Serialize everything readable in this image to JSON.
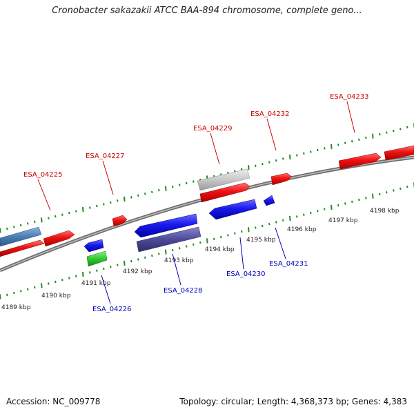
{
  "title": "Cronobacter sakazakii ATCC BAA-894 chromosome, complete geno...",
  "footer": {
    "accession": "Accession: NC_009778",
    "summary": "Topology: circular; Length: 4,368,373 bp; Genes: 4,383"
  },
  "colors": {
    "forward_gene": "#ee1111",
    "reverse_gene": "#1a1aee",
    "forward_label": "#cc0000",
    "reverse_label": "#0000bb",
    "tick": "#228b22",
    "backbone": "#808080"
  },
  "scale_ticks": [
    "4189 kbp",
    "4190 kbp",
    "4191 kbp",
    "4192 kbp",
    "4193 kbp",
    "4194 kbp",
    "4195 kbp",
    "4196 kbp",
    "4197 kbp",
    "4198 kbp"
  ],
  "forward_gene_labels": [
    "ESA_04225",
    "ESA_04227",
    "ESA_04229",
    "ESA_04232",
    "ESA_04233"
  ],
  "reverse_gene_labels": [
    "ESA_04226",
    "ESA_04228",
    "ESA_04230",
    "ESA_04231"
  ]
}
